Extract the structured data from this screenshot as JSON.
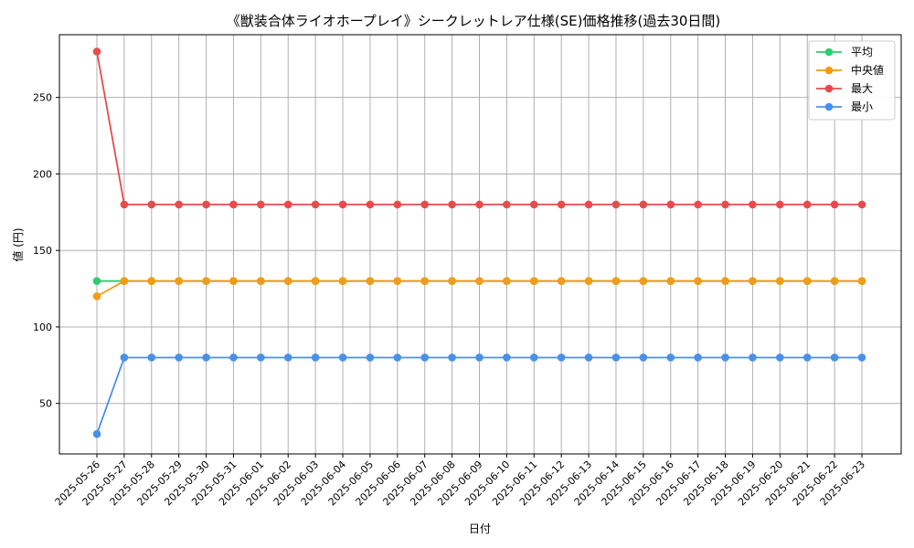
{
  "chart_data": {
    "type": "line",
    "title": "《獣装合体ライオホープレイ》シークレットレア仕様(SE)価格推移(過去30日間)",
    "xlabel": "日付",
    "ylabel": "値 (円)",
    "ylim": [
      17,
      291
    ],
    "yticks": [
      50,
      100,
      150,
      200,
      250
    ],
    "grid": true,
    "legend_position": "top-right",
    "x": [
      "2025-05-26",
      "2025-05-27",
      "2025-05-28",
      "2025-05-29",
      "2025-05-30",
      "2025-05-31",
      "2025-06-01",
      "2025-06-02",
      "2025-06-03",
      "2025-06-04",
      "2025-06-05",
      "2025-06-06",
      "2025-06-07",
      "2025-06-08",
      "2025-06-09",
      "2025-06-10",
      "2025-06-11",
      "2025-06-12",
      "2025-06-13",
      "2025-06-14",
      "2025-06-15",
      "2025-06-16",
      "2025-06-17",
      "2025-06-18",
      "2025-06-19",
      "2025-06-20",
      "2025-06-21",
      "2025-06-22",
      "2025-06-23"
    ],
    "series": [
      {
        "name": "平均",
        "color": "#2ecc71",
        "values": [
          130,
          130,
          130,
          130,
          130,
          130,
          130,
          130,
          130,
          130,
          130,
          130,
          130,
          130,
          130,
          130,
          130,
          130,
          130,
          130,
          130,
          130,
          130,
          130,
          130,
          130,
          130,
          130,
          130
        ]
      },
      {
        "name": "中央値",
        "color": "#f39c12",
        "values": [
          120,
          130,
          130,
          130,
          130,
          130,
          130,
          130,
          130,
          130,
          130,
          130,
          130,
          130,
          130,
          130,
          130,
          130,
          130,
          130,
          130,
          130,
          130,
          130,
          130,
          130,
          130,
          130,
          130
        ]
      },
      {
        "name": "最大",
        "color": "#e74c4c",
        "values": [
          280,
          180,
          180,
          180,
          180,
          180,
          180,
          180,
          180,
          180,
          180,
          180,
          180,
          180,
          180,
          180,
          180,
          180,
          180,
          180,
          180,
          180,
          180,
          180,
          180,
          180,
          180,
          180,
          180
        ]
      },
      {
        "name": "最小",
        "color": "#4a90e8",
        "values": [
          30,
          80,
          80,
          80,
          80,
          80,
          80,
          80,
          80,
          80,
          80,
          80,
          80,
          80,
          80,
          80,
          80,
          80,
          80,
          80,
          80,
          80,
          80,
          80,
          80,
          80,
          80,
          80,
          80
        ]
      }
    ]
  }
}
